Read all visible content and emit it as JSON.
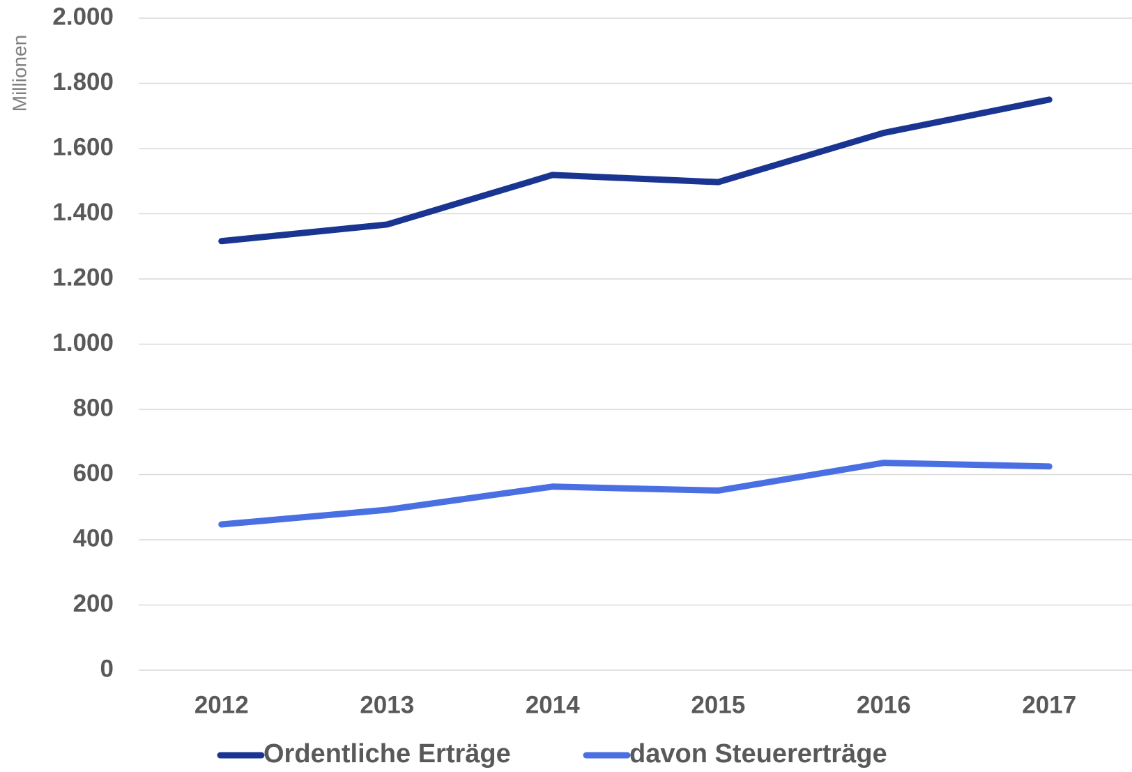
{
  "chart_data": {
    "type": "line",
    "y_axis_label": "Millionen",
    "categories": [
      "2012",
      "2013",
      "2014",
      "2015",
      "2016",
      "2017"
    ],
    "series": [
      {
        "name": "Ordentliche Erträge",
        "color": "#1a3591",
        "values": [
          1316,
          1367,
          1519,
          1497,
          1648,
          1750
        ]
      },
      {
        "name": "davon Steuererträge",
        "color": "#4a6fe3",
        "values": [
          447,
          492,
          563,
          551,
          636,
          625
        ]
      }
    ],
    "ylim": [
      0,
      2000
    ],
    "yticks": [
      0,
      200,
      400,
      600,
      800,
      {
        "value": 1000,
        "label": "1.000"
      },
      {
        "value": 1200,
        "label": "1.200"
      },
      {
        "value": 1400,
        "label": "1.400"
      },
      {
        "value": 1600,
        "label": "1.600"
      },
      {
        "value": 1800,
        "label": "1.800"
      },
      {
        "value": 2000,
        "label": "2.000"
      }
    ],
    "grid": true,
    "legend": "bottom"
  }
}
